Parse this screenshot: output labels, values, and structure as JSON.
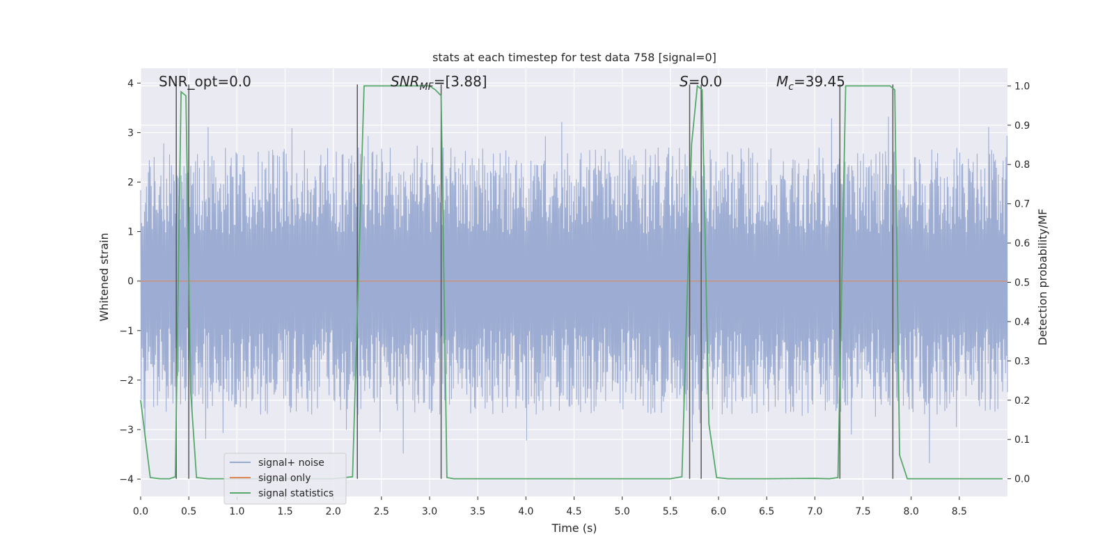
{
  "chart_data": {
    "type": "line",
    "title": "stats at each timestep for test data 758 [signal=0]",
    "xlabel": "Time (s)",
    "ylabel_left": "Whitened strain",
    "ylabel_right": "Detection probability/MF",
    "xlim": [
      0.0,
      9.0
    ],
    "ylim_left": [
      -4.35,
      4.3
    ],
    "ylim_right": [
      -0.045,
      1.045
    ],
    "x_ticks": [
      "0.0",
      "0.5",
      "1.0",
      "1.5",
      "2.0",
      "2.5",
      "3.0",
      "3.5",
      "4.0",
      "4.5",
      "5.0",
      "5.5",
      "6.0",
      "6.5",
      "7.0",
      "7.5",
      "8.0",
      "8.5"
    ],
    "y_left_ticks": [
      "4",
      "3",
      "2",
      "1",
      "0",
      "−1",
      "−2",
      "−3",
      "−4"
    ],
    "y_right_ticks": [
      "1.0",
      "0.9",
      "0.8",
      "0.7",
      "0.6",
      "0.5",
      "0.4",
      "0.3",
      "0.2",
      "0.1",
      "0.0"
    ],
    "annotations": {
      "snr_opt": "SNR_opt=0.0",
      "snr_mf_main": "SNR",
      "snr_mf_sub": "MF",
      "snr_mf_val": "=[3.88]",
      "s_main": "S",
      "s_val": "=0.0",
      "mc_main": "M",
      "mc_sub": "c",
      "mc_val": "=39.45"
    },
    "legend": {
      "placement": "lower-left",
      "entries": [
        "signal+ noise",
        "signal only",
        "signal statistics"
      ]
    },
    "colors": {
      "noise": "#98a9d0",
      "signal_only": "#dd8452",
      "statistics": "#55a868",
      "marker_lines": "#555555",
      "plot_bg": "#eaeaf2",
      "grid": "#ffffff"
    },
    "series": [
      {
        "name": "signal+ noise",
        "axis": "left",
        "description_type": "noise",
        "x_range": [
          0.0,
          9.0
        ],
        "typical_abs_max": 2.7,
        "extreme_values": [
          3.9,
          -4.0
        ]
      },
      {
        "name": "signal only",
        "axis": "left",
        "x": [
          0.0,
          9.0
        ],
        "y": [
          0.0,
          0.0
        ]
      },
      {
        "name": "signal statistics",
        "axis": "right",
        "x": [
          0.0,
          0.1,
          0.2,
          0.3,
          0.36,
          0.42,
          0.47,
          0.52,
          0.58,
          0.7,
          1.0,
          1.5,
          2.0,
          2.2,
          2.32,
          2.45,
          3.0,
          3.06,
          3.12,
          3.18,
          3.25,
          4.0,
          5.0,
          5.5,
          5.62,
          5.72,
          5.78,
          5.83,
          5.9,
          5.98,
          6.1,
          6.5,
          7.0,
          7.15,
          7.24,
          7.32,
          7.4,
          7.5,
          7.78,
          7.83,
          7.88,
          7.96,
          8.1,
          8.5,
          8.95
        ],
        "y": [
          0.2,
          0.003,
          0.0,
          0.0,
          0.005,
          0.985,
          0.975,
          0.22,
          0.003,
          0.0,
          0.0,
          0.0,
          0.0,
          0.005,
          1.0,
          1.0,
          1.0,
          0.99,
          0.975,
          0.003,
          0.0,
          0.0,
          0.0,
          0.0,
          0.005,
          0.85,
          1.0,
          0.99,
          0.14,
          0.003,
          0.0,
          0.0,
          0.001,
          0.0,
          0.003,
          1.0,
          1.0,
          1.0,
          1.0,
          0.99,
          0.06,
          0.0,
          0.0,
          0.0,
          0.0
        ]
      }
    ],
    "marker_lines_x": [
      0.37,
      0.5,
      2.25,
      3.12,
      5.7,
      5.82,
      7.26,
      7.81
    ]
  }
}
